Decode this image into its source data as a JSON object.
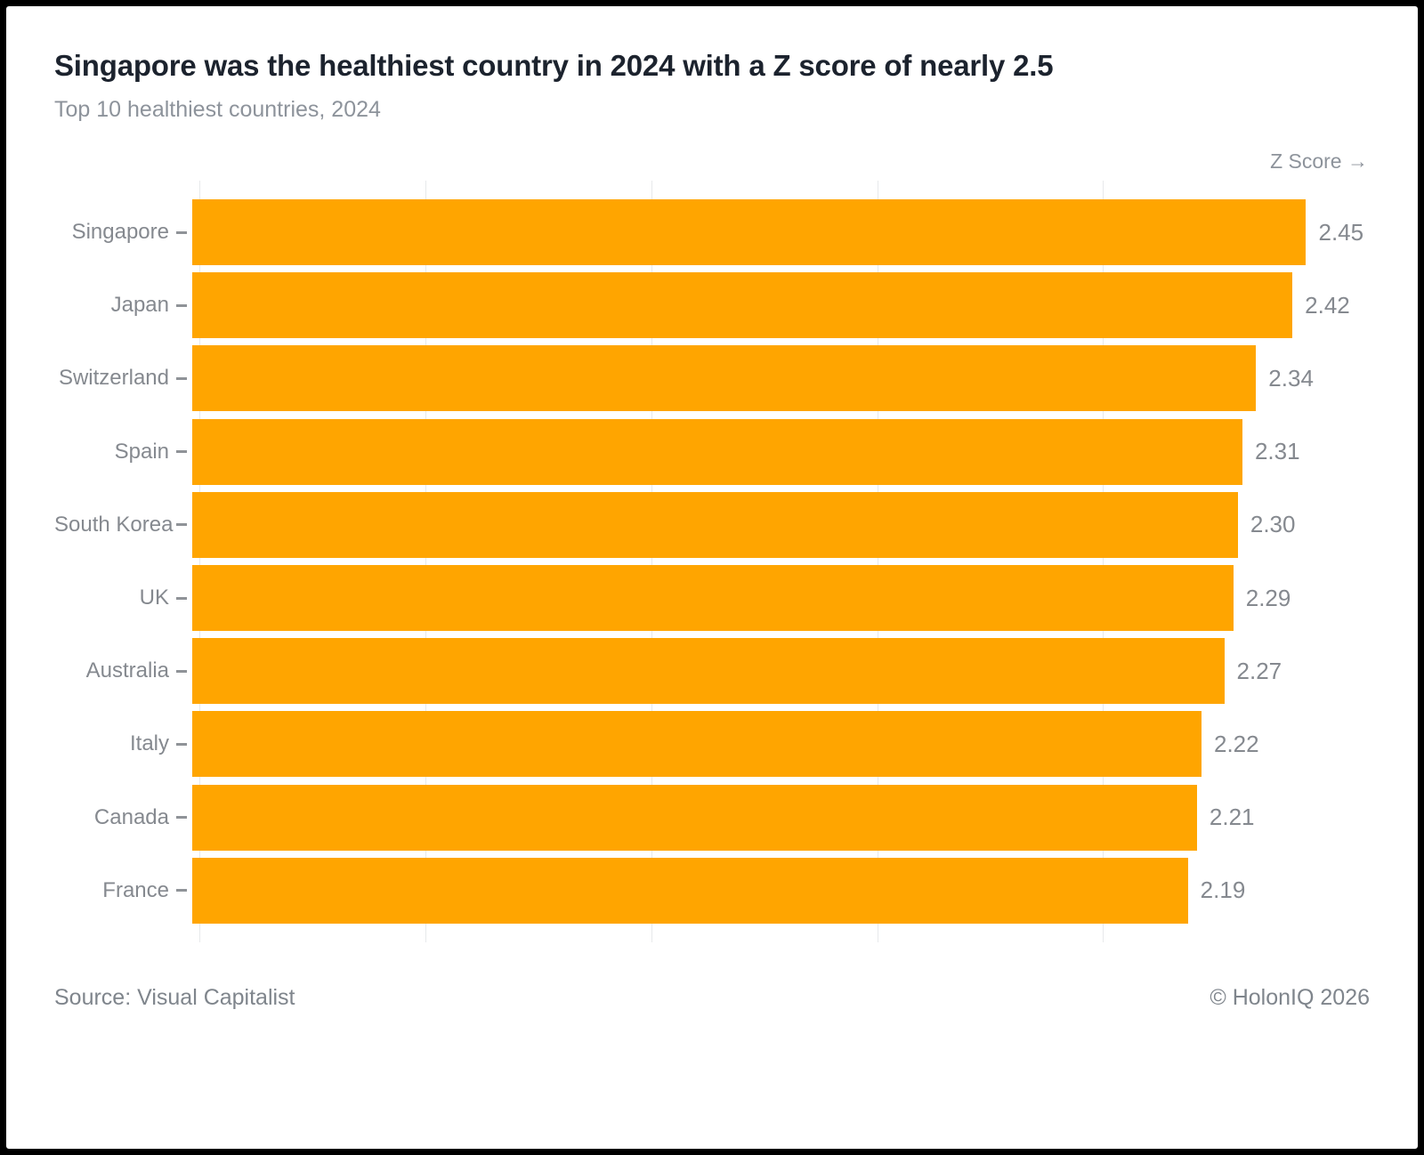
{
  "header": {
    "title": "Singapore was the healthiest country in 2024 with a Z score of nearly 2.5",
    "subtitle": "Top 10 healthiest countries, 2024"
  },
  "axis": {
    "x_title": "Z Score →"
  },
  "footer": {
    "source": "Source: Visual Capitalist",
    "copyright": "© HolonIQ 2026"
  },
  "colors": {
    "bar": "#FFA500",
    "label_gray": "#85898f",
    "gridline": "#e7e9eb",
    "title_dark": "#1c232e"
  },
  "chart_data": {
    "type": "bar",
    "orientation": "horizontal",
    "title": "Singapore was the healthiest country in 2024 with a Z score of nearly 2.5",
    "subtitle": "Top 10 healthiest countries, 2024",
    "xlabel": "Z Score",
    "ylabel": "",
    "categories": [
      "Singapore",
      "Japan",
      "Switzerland",
      "Spain",
      "South Korea",
      "UK",
      "Australia",
      "Italy",
      "Canada",
      "France"
    ],
    "values": [
      2.45,
      2.42,
      2.34,
      2.31,
      2.3,
      2.29,
      2.27,
      2.22,
      2.21,
      2.19
    ],
    "value_labels": [
      "2.45",
      "2.42",
      "2.34",
      "2.31",
      "2.30",
      "2.29",
      "2.27",
      "2.22",
      "2.21",
      "2.19"
    ],
    "xlim": [
      0,
      2.59
    ],
    "grid_ticks": [
      0,
      0.5,
      1.0,
      1.5,
      2.0
    ],
    "grid": true,
    "legend": false
  }
}
